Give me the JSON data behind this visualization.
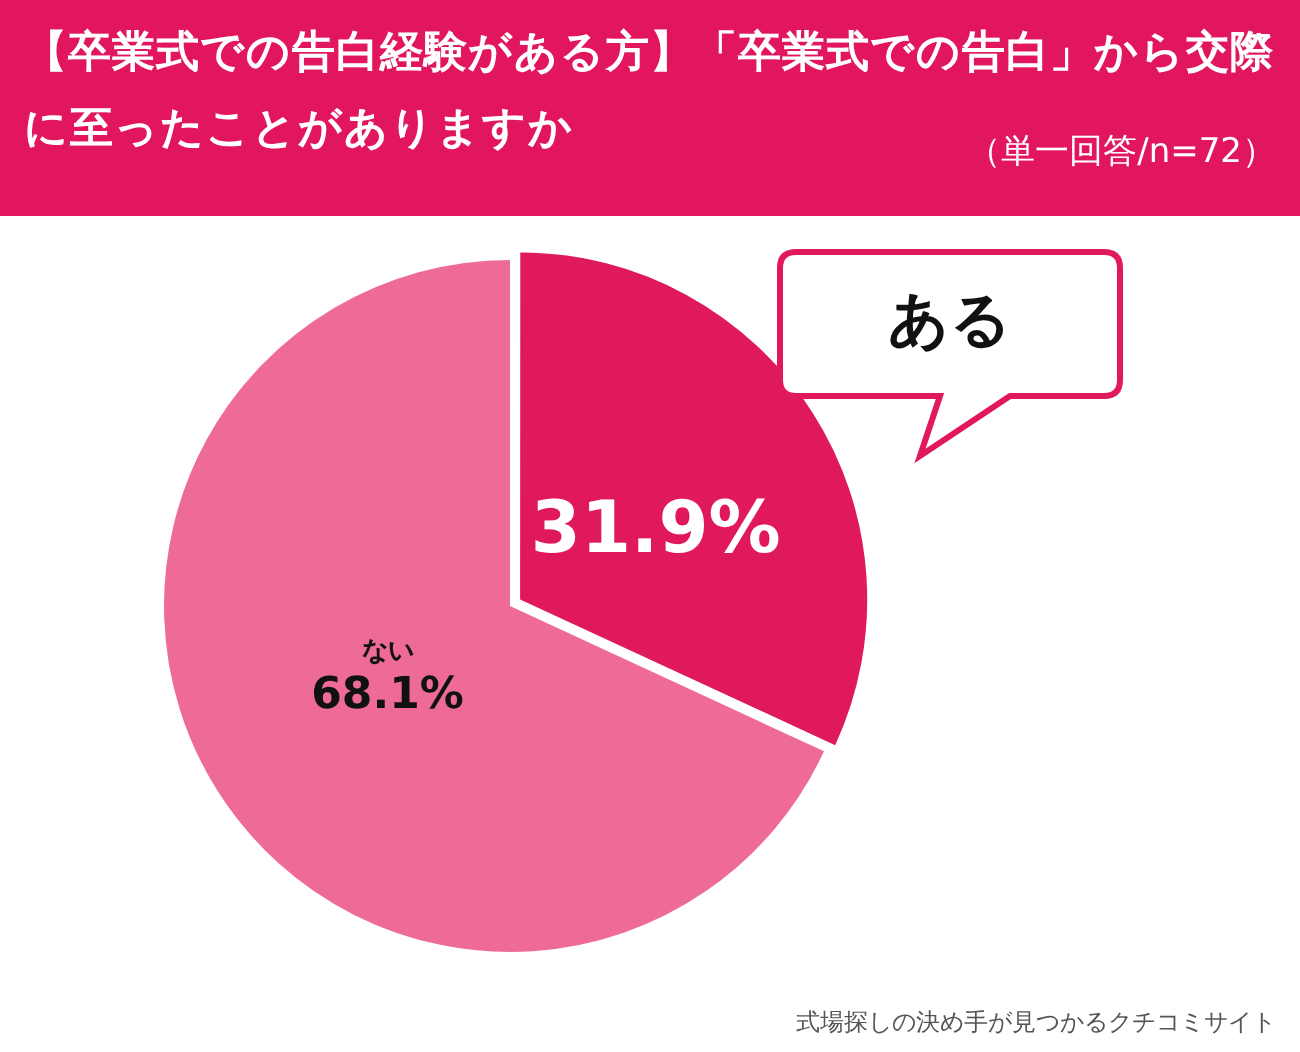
{
  "chart_data": {
    "type": "pie",
    "title": "【卒業式での告白経験がある方】「卒業式での告白」から交際に至ったことがありますか",
    "subtitle": "（単一回答/n=72）",
    "categories": [
      "ある",
      "ない"
    ],
    "values": [
      31.9,
      68.1
    ],
    "colors": [
      "#e0195c",
      "#ee6b98"
    ],
    "value_labels": [
      "31.9%",
      "68.1%"
    ],
    "legend": false,
    "annotations": [
      "式場探しの決め手が見つかるクチコミサイト"
    ]
  }
}
